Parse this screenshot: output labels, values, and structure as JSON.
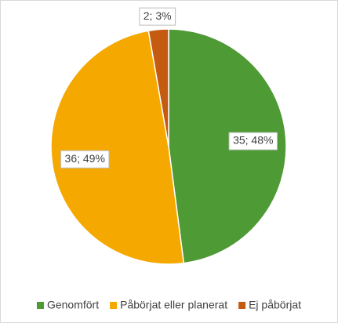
{
  "chart_data": {
    "type": "pie",
    "categories": [
      "Genomfört",
      "Påbörjat eller planerat",
      "Ej påbörjat"
    ],
    "values": [
      35,
      36,
      2
    ],
    "value_labels": [
      "35; 48%",
      "36; 49%",
      "2; 3%"
    ],
    "colors": [
      "#4e9a35",
      "#f5a800",
      "#c55a11"
    ],
    "legend": "bottom"
  }
}
